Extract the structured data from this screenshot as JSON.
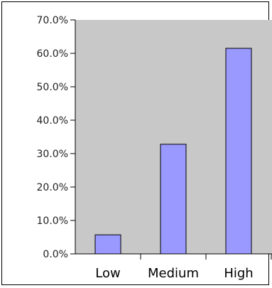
{
  "chart_data": {
    "type": "bar",
    "categories": [
      "Low",
      "Medium",
      "High"
    ],
    "values": [
      5.7,
      32.8,
      61.5
    ],
    "ylim": [
      0,
      70
    ],
    "yticks": [
      "0.0%",
      "10.0%",
      "20.0%",
      "30.0%",
      "40.0%",
      "50.0%",
      "60.0%",
      "70.0%"
    ],
    "title": "",
    "xlabel": "",
    "ylabel": "",
    "grid": false,
    "colors": {
      "plot_background": "#c8c8c8",
      "bar_fill": "#9999ff",
      "bar_stroke": "#000000"
    }
  }
}
